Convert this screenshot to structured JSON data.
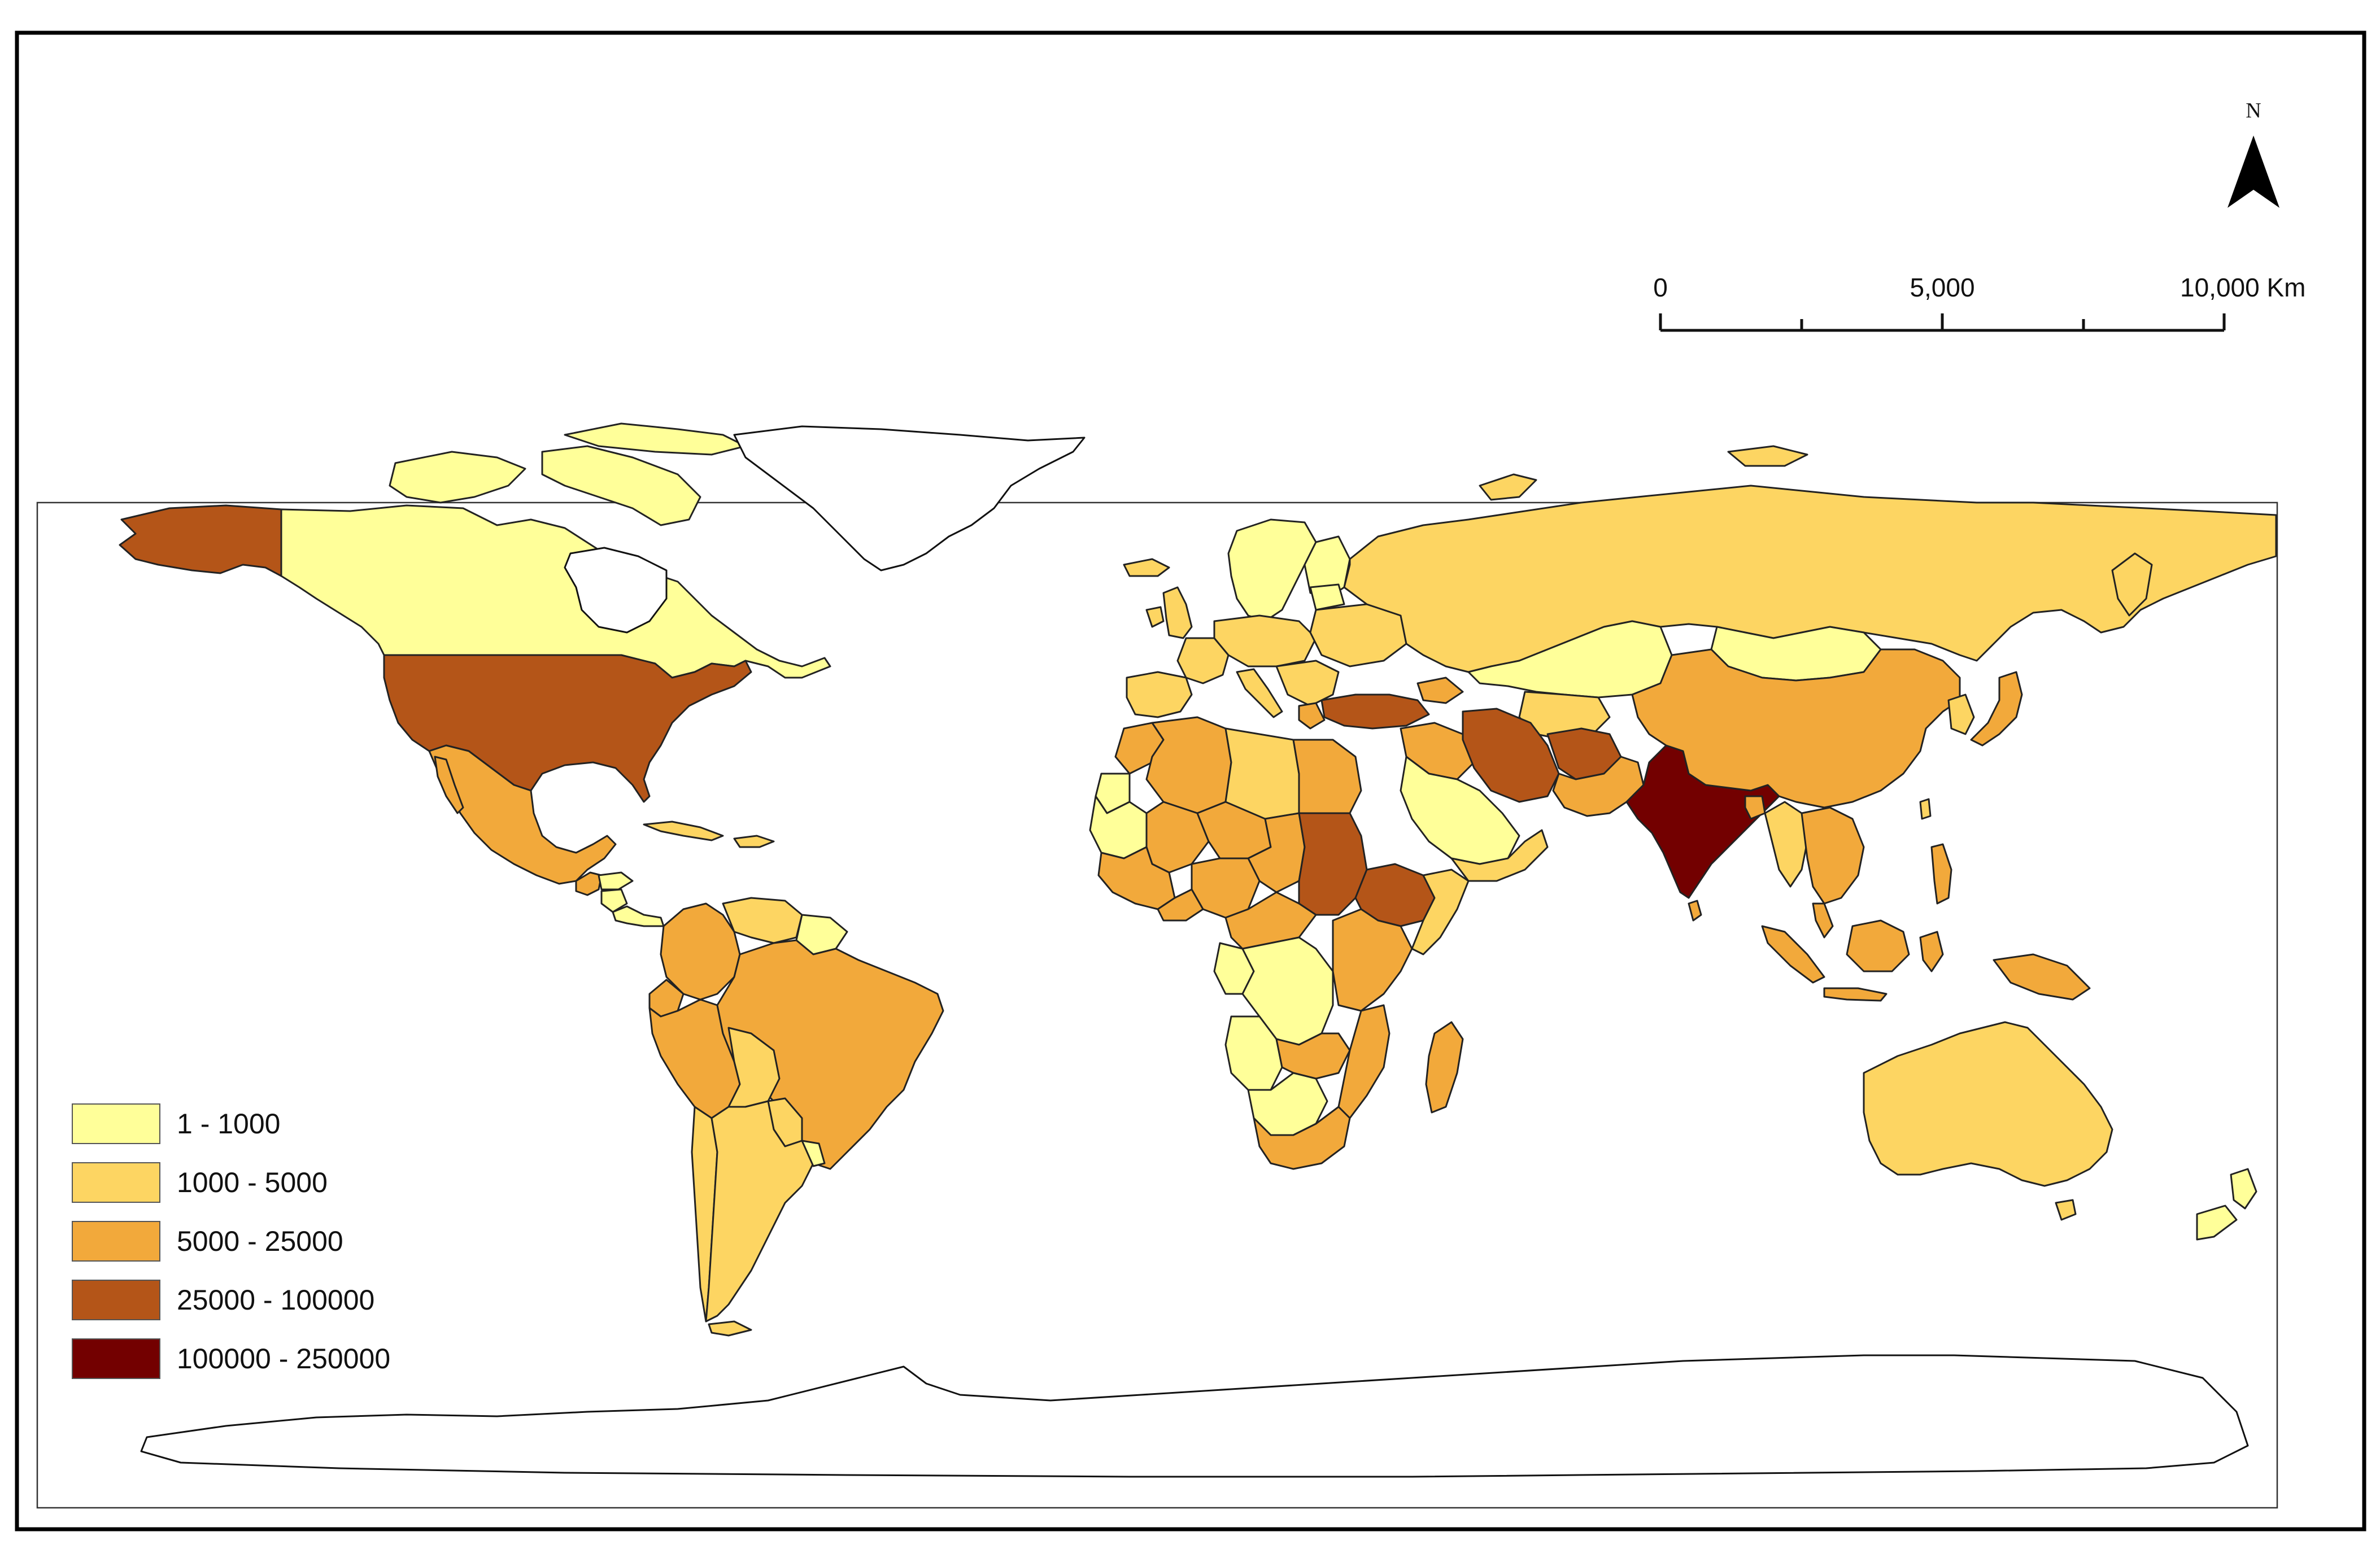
{
  "legend": {
    "classes": [
      {
        "label": "1 - 1000",
        "color": "#ffff99"
      },
      {
        "label": "1000 - 5000",
        "color": "#fdd562"
      },
      {
        "label": "5000 - 25000",
        "color": "#f2a93b"
      },
      {
        "label": "25000 - 100000",
        "color": "#b45518"
      },
      {
        "label": "100000 - 250000",
        "color": "#730000"
      }
    ]
  },
  "scale_bar": {
    "tick_labels": [
      "0",
      "5,000",
      "10,000 Km"
    ]
  },
  "north_arrow": {
    "letter": "N"
  },
  "colors": {
    "frame": "#000000",
    "no_data_land": "#ffffff",
    "outline": "#222222"
  }
}
